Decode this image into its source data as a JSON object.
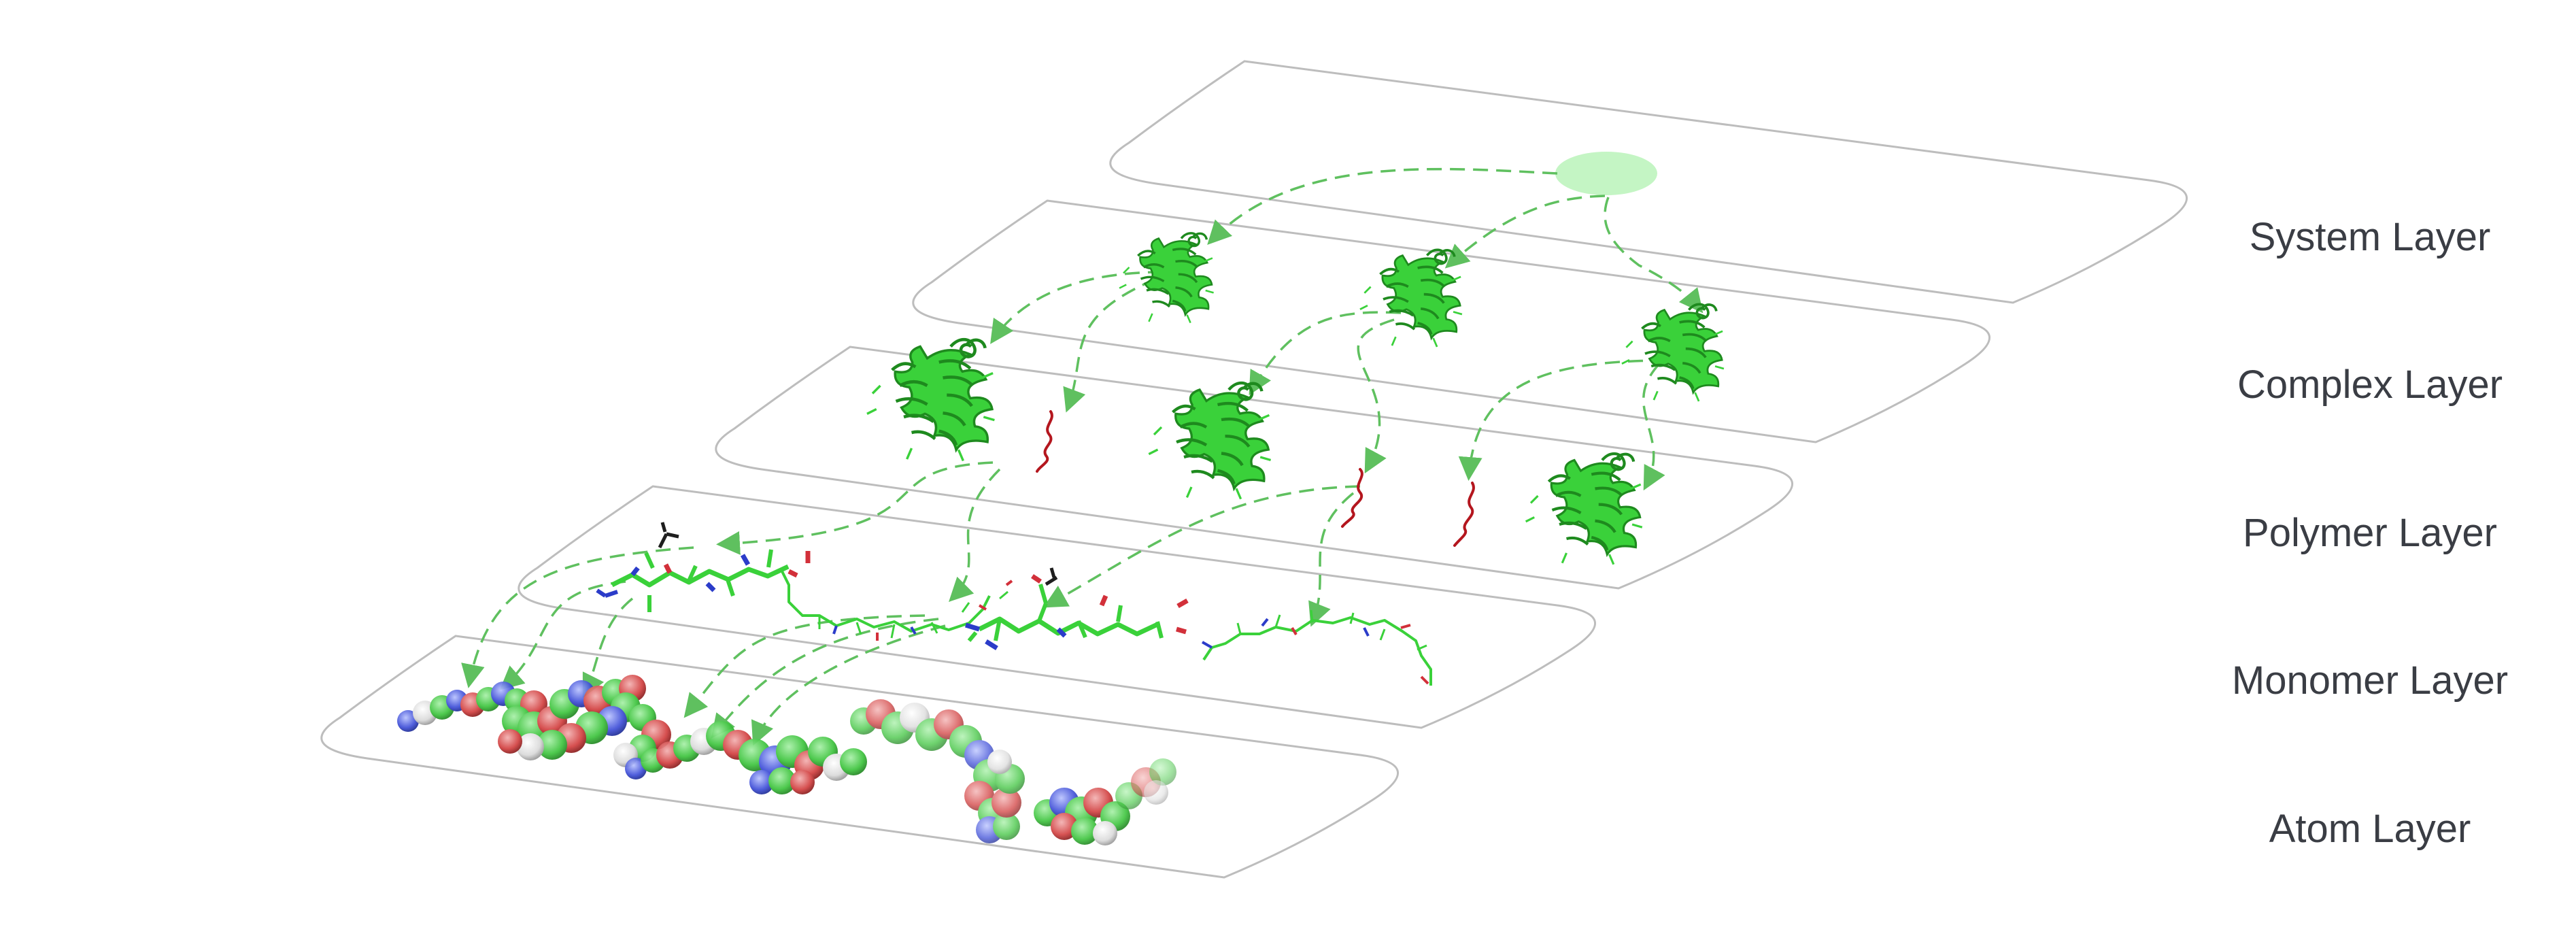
{
  "figure": {
    "layers": [
      {
        "id": "system",
        "label": "System Layer"
      },
      {
        "id": "complex",
        "label": "Complex Layer"
      },
      {
        "id": "polymer",
        "label": "Polymer Layer"
      },
      {
        "id": "monomer",
        "label": "Monomer Layer"
      },
      {
        "id": "atom",
        "label": "Atom Layer"
      }
    ],
    "colors": {
      "plane_outline": "#bdbdbd",
      "connector": "#5fc05f",
      "system_node": "#c4f5c4",
      "protein": "#3ad13a",
      "protein_dark": "#1e8a1e",
      "peptide_chain": "#b4161e",
      "nitrogen": "#2b3cc9",
      "oxygen": "#d2303a"
    },
    "icons": {
      "system_node": "ellipse-icon",
      "complex": "protein-ribbon-icon",
      "peptide": "peptide-chain-icon",
      "monomer": "stick-model-icon",
      "atom": "space-filling-molecule-icon"
    }
  }
}
